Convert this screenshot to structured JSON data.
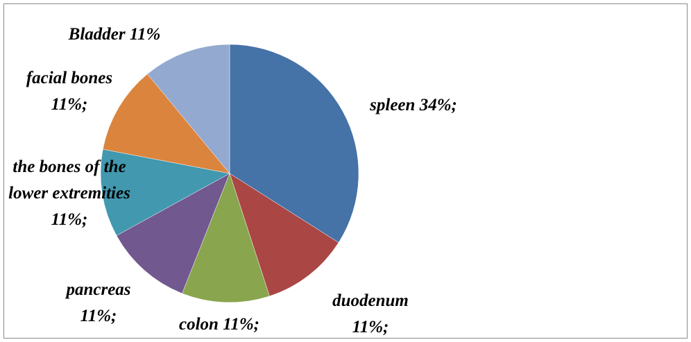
{
  "chart_data": {
    "type": "pie",
    "categories": [
      "spleen",
      "duodenum",
      "colon",
      "pancreas",
      "the bones of the lower extremities",
      "facial bones",
      "Bladder"
    ],
    "values": [
      34,
      11,
      11,
      11,
      11,
      11,
      11
    ],
    "value_labels": [
      "34%;",
      "11%;",
      "11%;",
      "11%;",
      "11%;",
      "11%;",
      "11%"
    ],
    "colors": [
      "#4572a7",
      "#aa4643",
      "#89a54e",
      "#71588f",
      "#4198af",
      "#db843d",
      "#93a9cf"
    ]
  }
}
